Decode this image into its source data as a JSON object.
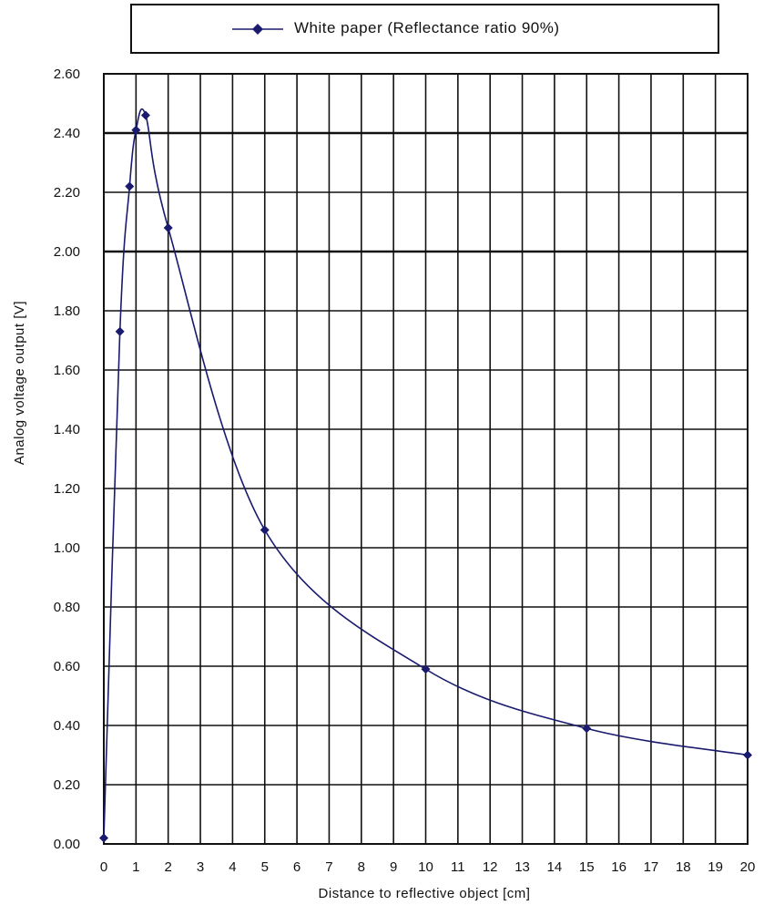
{
  "chart_data": {
    "type": "line",
    "title": "",
    "xlabel": "Distance to reflective object [cm]",
    "ylabel": "Analog voltage output [V]",
    "xlim": [
      0,
      20
    ],
    "ylim": [
      0,
      2.6
    ],
    "x_ticks": [
      "0",
      "1",
      "2",
      "3",
      "4",
      "5",
      "6",
      "7",
      "8",
      "9",
      "10",
      "11",
      "12",
      "13",
      "14",
      "15",
      "16",
      "17",
      "18",
      "19",
      "20"
    ],
    "y_ticks": [
      "0.00",
      "0.20",
      "0.40",
      "0.60",
      "0.80",
      "1.00",
      "1.20",
      "1.40",
      "1.60",
      "1.80",
      "2.00",
      "2.20",
      "2.40",
      "2.60"
    ],
    "y_tick_values": [
      0,
      0.2,
      0.4,
      0.6,
      0.8,
      1.0,
      1.2,
      1.4,
      1.6,
      1.8,
      2.0,
      2.2,
      2.4,
      2.6
    ],
    "grid": true,
    "legend_position": "top",
    "series": [
      {
        "name": "White paper (Reflectance ratio 90%)",
        "color": "#1a1a6e",
        "marker": "diamond",
        "x": [
          0,
          0.5,
          0.8,
          1.0,
          1.3,
          2,
          5,
          10,
          15,
          20
        ],
        "y": [
          0.02,
          1.73,
          2.22,
          2.41,
          2.46,
          2.08,
          1.06,
          0.59,
          0.39,
          0.3
        ]
      }
    ]
  }
}
